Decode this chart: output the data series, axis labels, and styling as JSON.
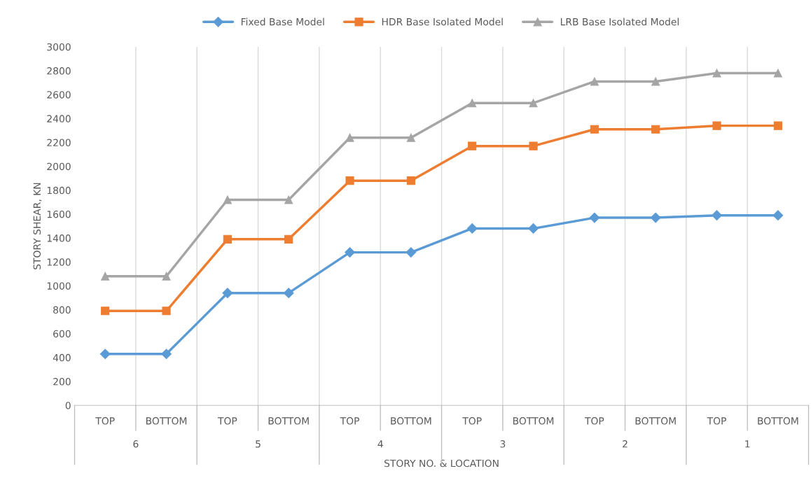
{
  "chart_data": {
    "type": "line",
    "xlabel": "STORY NO. & LOCATION",
    "ylabel": "STORY SHEAR, KN",
    "categories": [
      "TOP",
      "BOTTOM",
      "TOP",
      "BOTTOM",
      "TOP",
      "BOTTOM",
      "TOP",
      "BOTTOM",
      "TOP",
      "BOTTOM",
      "TOP",
      "BOTTOM"
    ],
    "annotations": [
      "6",
      "5",
      "4",
      "3",
      "2",
      "1"
    ],
    "series": [
      {
        "name": "Fixed Base Model",
        "color": "#5b9bd5",
        "marker": "diamond",
        "values": [
          430,
          430,
          940,
          940,
          1280,
          1280,
          1480,
          1480,
          1570,
          1570,
          1590,
          1590
        ]
      },
      {
        "name": "HDR Base Isolated Model",
        "color": "#ed7d31",
        "marker": "square",
        "values": [
          790,
          790,
          1390,
          1390,
          1880,
          1880,
          2170,
          2170,
          2310,
          2310,
          2340,
          2340
        ]
      },
      {
        "name": "LRB Base Isolated Model",
        "color": "#a5a5a5",
        "marker": "triangle",
        "values": [
          1080,
          1080,
          1720,
          1720,
          2240,
          2240,
          2530,
          2530,
          2710,
          2710,
          2780,
          2780
        ]
      }
    ],
    "ylim": [
      0,
      3000
    ],
    "yticks": [
      0,
      200,
      400,
      600,
      800,
      1000,
      1200,
      1400,
      1600,
      1800,
      2000,
      2200,
      2400,
      2600,
      2800,
      3000
    ],
    "grid": "x",
    "legend": "top",
    "line_style": "solid"
  }
}
